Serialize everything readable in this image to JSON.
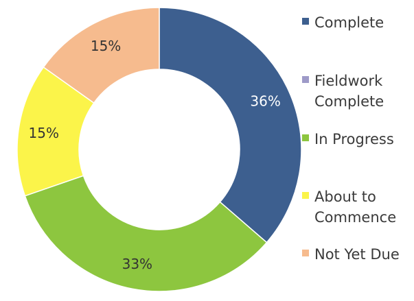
{
  "chart_data": {
    "type": "pie",
    "donut": true,
    "title": "",
    "legend_position": "right",
    "slices": [
      {
        "name": "Complete",
        "value": 36,
        "label": "36%",
        "color": "#3d5f8f",
        "label_color": "#ffffff"
      },
      {
        "name": "Fieldwork Complete",
        "value": 0,
        "label": "",
        "color": "#9e9ac8",
        "label_color": "#333333"
      },
      {
        "name": "In Progress",
        "value": 33,
        "label": "33%",
        "color": "#8dc63f",
        "label_color": "#333333"
      },
      {
        "name": "About to Commence",
        "value": 15,
        "label": "15%",
        "color": "#fbf44a",
        "label_color": "#333333"
      },
      {
        "name": "Not Yet Due",
        "value": 15,
        "label": "15%",
        "color": "#f6bb8e",
        "label_color": "#333333"
      }
    ],
    "legend": [
      {
        "text": "Complete",
        "color": "#3d5f8f"
      },
      {
        "text": "Fieldwork\nComplete",
        "color": "#9e9ac8"
      },
      {
        "text": "In Progress",
        "color": "#8dc63f"
      },
      {
        "text": "About to\nCommence",
        "color": "#fbf44a"
      },
      {
        "text": "Not Yet Due",
        "color": "#f6bb8e"
      }
    ]
  }
}
